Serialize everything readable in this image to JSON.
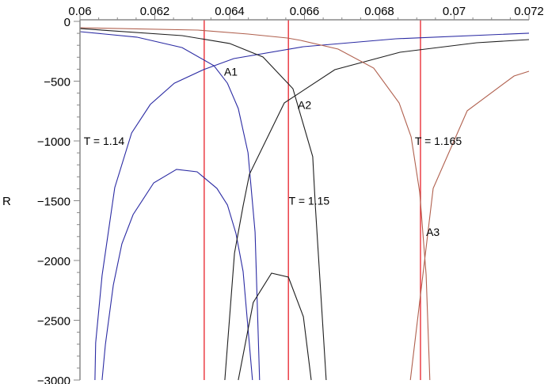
{
  "chart_data": {
    "type": "line",
    "title": "",
    "xlabel": "",
    "ylabel": "R",
    "xlim": [
      0.06,
      0.072
    ],
    "ylim": [
      -3000,
      0
    ],
    "x_axis_position": "top",
    "grid": false,
    "x_ticks": [
      0.06,
      0.062,
      0.064,
      0.066,
      0.068,
      0.07,
      0.072
    ],
    "x_tick_labels": [
      "0.06",
      "0.062",
      "0.064",
      "0.066",
      "0.068",
      "0.07",
      "0.072"
    ],
    "y_ticks": [
      0,
      -500,
      -1000,
      -1500,
      -2000,
      -2500,
      -3000
    ],
    "y_tick_labels": [
      "0",
      "−500",
      "−1000",
      "−1500",
      "−2000",
      "−2500",
      "−3000"
    ],
    "colors": {
      "blue": "#2b2ba3",
      "black": "#1e1e1e",
      "brown": "#b0604e",
      "red": "#e8202a"
    },
    "series": [
      {
        "color": "blue",
        "points": [
          [
            0.06,
            -86
          ],
          [
            0.06152,
            -132
          ],
          [
            0.06273,
            -219
          ],
          [
            0.06358,
            -371
          ],
          [
            0.06394,
            -517
          ],
          [
            0.06423,
            -729
          ],
          [
            0.06449,
            -1099
          ],
          [
            0.06468,
            -1762
          ],
          [
            0.0648,
            -3000
          ]
        ]
      },
      {
        "color": "blue",
        "points": [
          [
            0.0604,
            -3000
          ],
          [
            0.06042,
            -2689
          ],
          [
            0.06059,
            -2126
          ],
          [
            0.06093,
            -1391
          ],
          [
            0.06138,
            -934
          ],
          [
            0.06188,
            -695
          ],
          [
            0.06252,
            -517
          ],
          [
            0.0633,
            -404
          ],
          [
            0.06411,
            -311
          ],
          [
            0.06597,
            -212
          ],
          [
            0.06844,
            -146
          ],
          [
            0.072,
            -99
          ]
        ]
      },
      {
        "color": "blue",
        "points": [
          [
            0.06059,
            -3000
          ],
          [
            0.06068,
            -2702
          ],
          [
            0.06089,
            -2205
          ],
          [
            0.06112,
            -1861
          ],
          [
            0.06142,
            -1616
          ],
          [
            0.06197,
            -1351
          ],
          [
            0.06258,
            -1238
          ],
          [
            0.06313,
            -1258
          ],
          [
            0.06366,
            -1397
          ],
          [
            0.06394,
            -1536
          ],
          [
            0.06417,
            -1775
          ],
          [
            0.06436,
            -2093
          ],
          [
            0.06461,
            -3000
          ]
        ]
      },
      {
        "color": "black",
        "points": [
          [
            0.06,
            -60
          ],
          [
            0.06273,
            -119
          ],
          [
            0.064,
            -185
          ],
          [
            0.06489,
            -298
          ],
          [
            0.06569,
            -563
          ],
          [
            0.06622,
            -1132
          ],
          [
            0.06629,
            -1543
          ],
          [
            0.06658,
            -3000
          ]
        ]
      },
      {
        "color": "black",
        "points": [
          [
            0.06387,
            -3000
          ],
          [
            0.06413,
            -1940
          ],
          [
            0.06436,
            -1543
          ],
          [
            0.06453,
            -1278
          ],
          [
            0.06546,
            -682
          ],
          [
            0.06681,
            -404
          ],
          [
            0.06855,
            -258
          ],
          [
            0.0706,
            -179
          ],
          [
            0.072,
            -152
          ]
        ]
      },
      {
        "color": "black",
        "points": [
          [
            0.06423,
            -3000
          ],
          [
            0.06463,
            -2351
          ],
          [
            0.06512,
            -2106
          ],
          [
            0.06557,
            -2139
          ],
          [
            0.06597,
            -2470
          ],
          [
            0.06618,
            -3000
          ]
        ]
      },
      {
        "color": "brown",
        "points": [
          [
            0.06,
            -53
          ],
          [
            0.06315,
            -73
          ],
          [
            0.06449,
            -106
          ],
          [
            0.06554,
            -139
          ],
          [
            0.0659,
            -159
          ],
          [
            0.0669,
            -232
          ],
          [
            0.06785,
            -391
          ],
          [
            0.06853,
            -682
          ],
          [
            0.06885,
            -967
          ],
          [
            0.06908,
            -1430
          ],
          [
            0.06925,
            -2119
          ],
          [
            0.06935,
            -3000
          ]
        ]
      },
      {
        "color": "brown",
        "points": [
          [
            0.06883,
            -3000
          ],
          [
            0.06944,
            -1397
          ],
          [
            0.07035,
            -748
          ],
          [
            0.0716,
            -457
          ],
          [
            0.072,
            -417
          ]
        ]
      }
    ],
    "vertical_lines": [
      {
        "x": 0.06332,
        "color": "red"
      },
      {
        "x": 0.06557,
        "color": "red"
      },
      {
        "x": 0.0691,
        "color": "red"
      }
    ],
    "annotations": [
      {
        "text": "A1",
        "x": 0.06385,
        "y": -420
      },
      {
        "text": "A2",
        "x": 0.06582,
        "y": -700
      },
      {
        "text": "T = 1.14",
        "x": 0.0601,
        "y": -1000
      },
      {
        "text": "T = 1.15",
        "x": 0.06558,
        "y": -1500
      },
      {
        "text": "T = 1.165",
        "x": 0.06895,
        "y": -1000
      },
      {
        "text": "A3",
        "x": 0.06925,
        "y": -1760
      }
    ]
  }
}
